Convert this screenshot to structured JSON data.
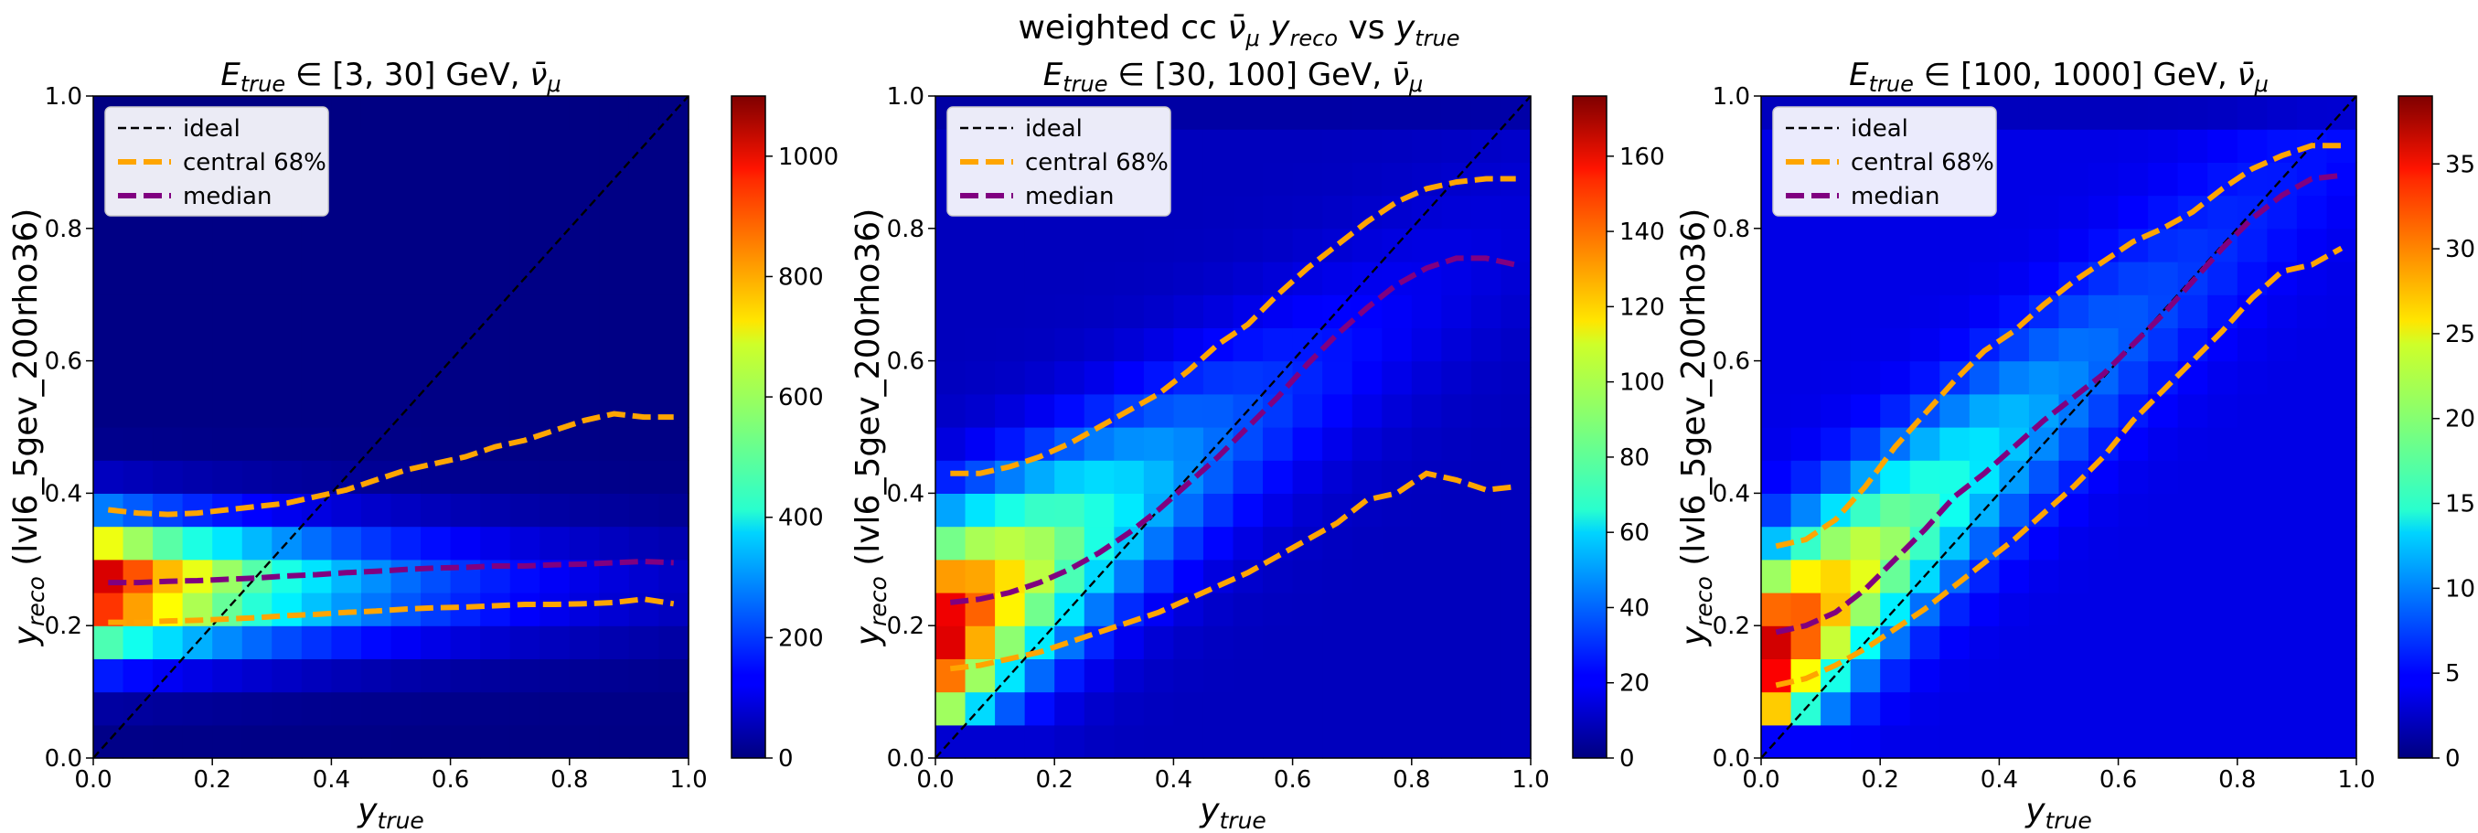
{
  "figure": {
    "suptitle_main": "weighted cc ",
    "suptitle_nu": "ν̄",
    "suptitle_mu": "μ",
    "suptitle_y1": "y",
    "suptitle_sub1": "reco",
    "suptitle_vs": " vs  ",
    "suptitle_y2": "y",
    "suptitle_sub2": "true"
  },
  "legend": {
    "ideal": "ideal",
    "central": "central 68%",
    "median": "median"
  },
  "axis_text": {
    "x_main": "y",
    "x_sub": "true",
    "y_main": "y",
    "y_sub": "reco",
    "y_rest": " (lvl6_5gev_200rho36)",
    "title_E": "E",
    "title_Esub": "true",
    "title_in": " ∈ ",
    "title_gev": " GeV, ",
    "title_nu": "ν̄",
    "title_mu": "μ"
  },
  "colors": {
    "ideal": "#000000",
    "central": "#ffa500",
    "median": "#800080",
    "colormap": "jet"
  },
  "chart_data": [
    {
      "type": "heatmap",
      "energy_range": "[3, 30]",
      "xlim": [
        0,
        1
      ],
      "ylim": [
        0,
        1
      ],
      "x_ticks": [
        "0.0",
        "0.2",
        "0.4",
        "0.6",
        "0.8",
        "1.0"
      ],
      "y_ticks": [
        "0.0",
        "0.2",
        "0.4",
        "0.6",
        "0.8",
        "1.0"
      ],
      "colorbar_ticks": [
        "0",
        "200",
        "400",
        "600",
        "800",
        "1000"
      ],
      "colorbar_max": 1100,
      "bins": 20,
      "cell_peak": 1100,
      "band_center": 0.26,
      "band_width": 0.07,
      "band_slope": 0.0,
      "x_decay": 0.36,
      "floor": 0.005,
      "ideal": [
        [
          0,
          0
        ],
        [
          1,
          1
        ]
      ],
      "central_upper": [
        [
          0.025,
          0.375
        ],
        [
          0.075,
          0.37
        ],
        [
          0.125,
          0.368
        ],
        [
          0.175,
          0.37
        ],
        [
          0.225,
          0.375
        ],
        [
          0.275,
          0.38
        ],
        [
          0.325,
          0.385
        ],
        [
          0.375,
          0.395
        ],
        [
          0.425,
          0.405
        ],
        [
          0.475,
          0.42
        ],
        [
          0.525,
          0.435
        ],
        [
          0.575,
          0.445
        ],
        [
          0.625,
          0.455
        ],
        [
          0.675,
          0.47
        ],
        [
          0.725,
          0.48
        ],
        [
          0.775,
          0.495
        ],
        [
          0.825,
          0.51
        ],
        [
          0.875,
          0.52
        ],
        [
          0.925,
          0.515
        ],
        [
          0.975,
          0.515
        ]
      ],
      "median": [
        [
          0.025,
          0.265
        ],
        [
          0.075,
          0.265
        ],
        [
          0.125,
          0.267
        ],
        [
          0.175,
          0.268
        ],
        [
          0.225,
          0.27
        ],
        [
          0.275,
          0.272
        ],
        [
          0.325,
          0.275
        ],
        [
          0.375,
          0.277
        ],
        [
          0.425,
          0.28
        ],
        [
          0.475,
          0.282
        ],
        [
          0.525,
          0.285
        ],
        [
          0.575,
          0.287
        ],
        [
          0.625,
          0.288
        ],
        [
          0.675,
          0.29
        ],
        [
          0.725,
          0.29
        ],
        [
          0.775,
          0.292
        ],
        [
          0.825,
          0.293
        ],
        [
          0.875,
          0.295
        ],
        [
          0.925,
          0.297
        ],
        [
          0.975,
          0.295
        ]
      ],
      "central_lower": [
        [
          0.025,
          0.205
        ],
        [
          0.075,
          0.205
        ],
        [
          0.125,
          0.207
        ],
        [
          0.175,
          0.208
        ],
        [
          0.225,
          0.21
        ],
        [
          0.275,
          0.212
        ],
        [
          0.325,
          0.215
        ],
        [
          0.375,
          0.217
        ],
        [
          0.425,
          0.22
        ],
        [
          0.475,
          0.222
        ],
        [
          0.525,
          0.225
        ],
        [
          0.575,
          0.227
        ],
        [
          0.625,
          0.228
        ],
        [
          0.675,
          0.23
        ],
        [
          0.725,
          0.232
        ],
        [
          0.775,
          0.232
        ],
        [
          0.825,
          0.233
        ],
        [
          0.875,
          0.235
        ],
        [
          0.925,
          0.24
        ],
        [
          0.975,
          0.233
        ]
      ]
    },
    {
      "type": "heatmap",
      "energy_range": "[30, 100]",
      "xlim": [
        0,
        1
      ],
      "ylim": [
        0,
        1
      ],
      "x_ticks": [
        "0.0",
        "0.2",
        "0.4",
        "0.6",
        "0.8",
        "1.0"
      ],
      "y_ticks": [
        "0.0",
        "0.2",
        "0.4",
        "0.6",
        "0.8",
        "1.0"
      ],
      "colorbar_ticks": [
        "0",
        "20",
        "40",
        "60",
        "80",
        "100",
        "120",
        "140",
        "160"
      ],
      "colorbar_max": 176,
      "bins": 20,
      "cell_peak": 176,
      "band_center": 0.18,
      "band_width": 0.11,
      "band_slope": 0.62,
      "x_decay": 0.28,
      "floor": 0.06,
      "ideal": [
        [
          0,
          0
        ],
        [
          1,
          1
        ]
      ],
      "central_upper": [
        [
          0.025,
          0.43
        ],
        [
          0.075,
          0.43
        ],
        [
          0.125,
          0.44
        ],
        [
          0.175,
          0.455
        ],
        [
          0.225,
          0.475
        ],
        [
          0.275,
          0.5
        ],
        [
          0.325,
          0.525
        ],
        [
          0.375,
          0.55
        ],
        [
          0.425,
          0.585
        ],
        [
          0.475,
          0.625
        ],
        [
          0.525,
          0.655
        ],
        [
          0.575,
          0.7
        ],
        [
          0.625,
          0.74
        ],
        [
          0.675,
          0.775
        ],
        [
          0.725,
          0.81
        ],
        [
          0.775,
          0.84
        ],
        [
          0.825,
          0.86
        ],
        [
          0.875,
          0.87
        ],
        [
          0.925,
          0.875
        ],
        [
          0.975,
          0.875
        ]
      ],
      "median": [
        [
          0.025,
          0.235
        ],
        [
          0.075,
          0.24
        ],
        [
          0.125,
          0.25
        ],
        [
          0.175,
          0.265
        ],
        [
          0.225,
          0.285
        ],
        [
          0.275,
          0.31
        ],
        [
          0.325,
          0.34
        ],
        [
          0.375,
          0.375
        ],
        [
          0.425,
          0.415
        ],
        [
          0.475,
          0.455
        ],
        [
          0.525,
          0.5
        ],
        [
          0.575,
          0.545
        ],
        [
          0.625,
          0.595
        ],
        [
          0.675,
          0.64
        ],
        [
          0.725,
          0.68
        ],
        [
          0.775,
          0.715
        ],
        [
          0.825,
          0.74
        ],
        [
          0.875,
          0.755
        ],
        [
          0.925,
          0.755
        ],
        [
          0.975,
          0.745
        ]
      ],
      "central_lower": [
        [
          0.025,
          0.135
        ],
        [
          0.075,
          0.14
        ],
        [
          0.125,
          0.15
        ],
        [
          0.175,
          0.16
        ],
        [
          0.225,
          0.175
        ],
        [
          0.275,
          0.19
        ],
        [
          0.325,
          0.205
        ],
        [
          0.375,
          0.22
        ],
        [
          0.425,
          0.24
        ],
        [
          0.475,
          0.26
        ],
        [
          0.525,
          0.28
        ],
        [
          0.575,
          0.305
        ],
        [
          0.625,
          0.33
        ],
        [
          0.675,
          0.355
        ],
        [
          0.725,
          0.39
        ],
        [
          0.775,
          0.4
        ],
        [
          0.825,
          0.43
        ],
        [
          0.875,
          0.42
        ],
        [
          0.925,
          0.405
        ],
        [
          0.975,
          0.41
        ]
      ]
    },
    {
      "type": "heatmap",
      "energy_range": "[100, 1000]",
      "xlim": [
        0,
        1
      ],
      "ylim": [
        0,
        1
      ],
      "x_ticks": [
        "0.0",
        "0.2",
        "0.4",
        "0.6",
        "0.8",
        "1.0"
      ],
      "y_ticks": [
        "0.0",
        "0.2",
        "0.4",
        "0.6",
        "0.8",
        "1.0"
      ],
      "colorbar_ticks": [
        "0",
        "5",
        "10",
        "15",
        "20",
        "25",
        "30",
        "35"
      ],
      "colorbar_max": 39,
      "bins": 20,
      "cell_peak": 39,
      "band_center": 0.14,
      "band_width": 0.1,
      "band_slope": 0.82,
      "x_decay": 0.3,
      "floor": 0.1,
      "ideal": [
        [
          0,
          0
        ],
        [
          1,
          1
        ]
      ],
      "central_upper": [
        [
          0.025,
          0.32
        ],
        [
          0.075,
          0.33
        ],
        [
          0.125,
          0.36
        ],
        [
          0.175,
          0.41
        ],
        [
          0.225,
          0.47
        ],
        [
          0.275,
          0.52
        ],
        [
          0.325,
          0.57
        ],
        [
          0.375,
          0.615
        ],
        [
          0.425,
          0.645
        ],
        [
          0.475,
          0.685
        ],
        [
          0.525,
          0.72
        ],
        [
          0.575,
          0.75
        ],
        [
          0.625,
          0.78
        ],
        [
          0.675,
          0.8
        ],
        [
          0.725,
          0.825
        ],
        [
          0.775,
          0.86
        ],
        [
          0.825,
          0.89
        ],
        [
          0.875,
          0.91
        ],
        [
          0.925,
          0.925
        ],
        [
          0.975,
          0.925
        ]
      ],
      "median": [
        [
          0.025,
          0.19
        ],
        [
          0.075,
          0.2
        ],
        [
          0.125,
          0.22
        ],
        [
          0.175,
          0.255
        ],
        [
          0.225,
          0.3
        ],
        [
          0.275,
          0.345
        ],
        [
          0.325,
          0.395
        ],
        [
          0.375,
          0.43
        ],
        [
          0.425,
          0.47
        ],
        [
          0.475,
          0.51
        ],
        [
          0.525,
          0.545
        ],
        [
          0.575,
          0.58
        ],
        [
          0.625,
          0.625
        ],
        [
          0.675,
          0.67
        ],
        [
          0.725,
          0.72
        ],
        [
          0.775,
          0.77
        ],
        [
          0.825,
          0.815
        ],
        [
          0.875,
          0.85
        ],
        [
          0.925,
          0.875
        ],
        [
          0.975,
          0.88
        ]
      ],
      "central_lower": [
        [
          0.025,
          0.11
        ],
        [
          0.075,
          0.12
        ],
        [
          0.125,
          0.14
        ],
        [
          0.175,
          0.165
        ],
        [
          0.225,
          0.195
        ],
        [
          0.275,
          0.225
        ],
        [
          0.325,
          0.26
        ],
        [
          0.375,
          0.295
        ],
        [
          0.425,
          0.33
        ],
        [
          0.475,
          0.37
        ],
        [
          0.525,
          0.41
        ],
        [
          0.575,
          0.455
        ],
        [
          0.625,
          0.51
        ],
        [
          0.675,
          0.555
        ],
        [
          0.725,
          0.6
        ],
        [
          0.775,
          0.645
        ],
        [
          0.825,
          0.695
        ],
        [
          0.875,
          0.735
        ],
        [
          0.925,
          0.745
        ],
        [
          0.975,
          0.77
        ]
      ]
    }
  ]
}
